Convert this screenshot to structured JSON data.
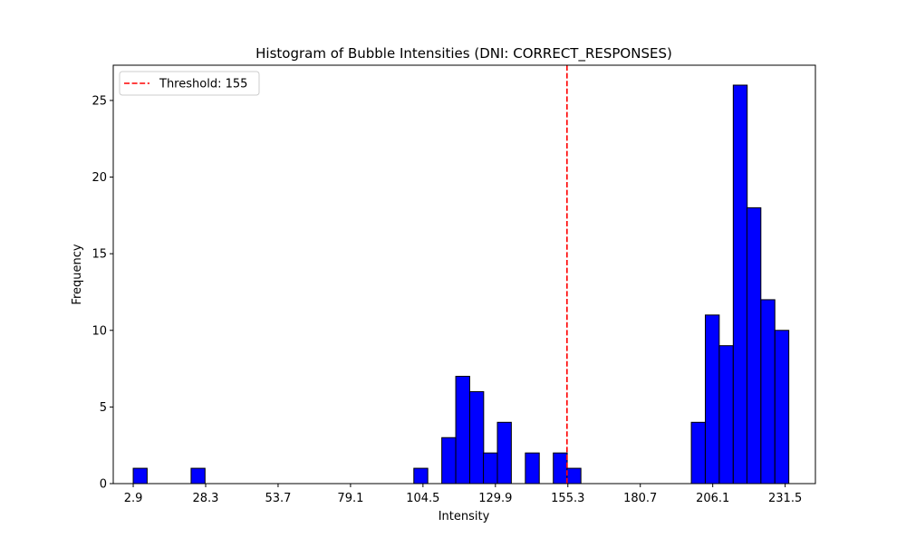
{
  "chart_data": {
    "type": "bar",
    "title": "Histogram of Bubble Intensities (DNI: CORRECT_RESPONSES)",
    "xlabel": "Intensity",
    "ylabel": "Frequency",
    "xlim": [
      -4.1,
      242.1
    ],
    "ylim": [
      0,
      27.3
    ],
    "bin_width": 4.88,
    "bins": [
      {
        "start": 2.9,
        "count": 1
      },
      {
        "start": 23.2,
        "count": 1
      },
      {
        "start": 101.3,
        "count": 1
      },
      {
        "start": 111.1,
        "count": 3
      },
      {
        "start": 116.0,
        "count": 7
      },
      {
        "start": 120.9,
        "count": 6
      },
      {
        "start": 125.7,
        "count": 2
      },
      {
        "start": 130.6,
        "count": 4
      },
      {
        "start": 140.4,
        "count": 2
      },
      {
        "start": 150.2,
        "count": 2
      },
      {
        "start": 155.0,
        "count": 1
      },
      {
        "start": 198.6,
        "count": 4
      },
      {
        "start": 203.5,
        "count": 11
      },
      {
        "start": 208.4,
        "count": 9
      },
      {
        "start": 213.3,
        "count": 26
      },
      {
        "start": 218.1,
        "count": 18
      },
      {
        "start": 223.0,
        "count": 12
      },
      {
        "start": 227.9,
        "count": 10
      }
    ],
    "x_ticks": [
      2.9,
      28.3,
      53.7,
      79.1,
      104.5,
      129.9,
      155.3,
      180.7,
      206.1,
      231.5
    ],
    "x_tick_labels": [
      "2.9",
      "28.3",
      "53.7",
      "79.1",
      "104.5",
      "129.9",
      "155.3",
      "180.7",
      "206.1",
      "231.5"
    ],
    "y_ticks": [
      0,
      5,
      10,
      15,
      20,
      25
    ],
    "y_tick_labels": [
      "0",
      "5",
      "10",
      "15",
      "20",
      "25"
    ],
    "threshold": {
      "value": 155,
      "label": "Threshold: 155",
      "color": "#ff0000"
    },
    "bar_color": "#0000ff",
    "bar_edge_color": "#000000",
    "grid": false,
    "legend_position": "top-left"
  }
}
